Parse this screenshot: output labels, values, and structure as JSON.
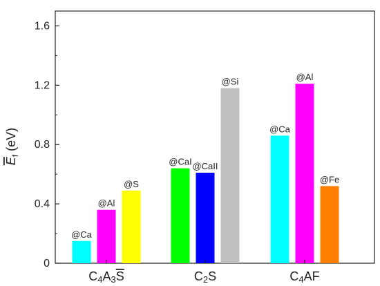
{
  "chart_data": {
    "type": "bar",
    "ylabel": "Ef (eV)",
    "ylabel_main": "E",
    "ylabel_sub": "f",
    "ylabel_unit": " (eV)",
    "ylim": [
      0,
      1.7
    ],
    "yticks": [
      "0",
      "0.4",
      "0.8",
      "1.2",
      "1.6"
    ],
    "ytick_values": [
      0,
      0.4,
      0.8,
      1.2,
      1.6
    ],
    "grid": false,
    "categories": [
      {
        "name": "C4A3S̄",
        "parts": [
          [
            "C",
            ""
          ],
          [
            "4",
            "sub"
          ],
          [
            "A",
            ""
          ],
          [
            "3",
            "sub"
          ],
          [
            "S",
            "overline"
          ]
        ]
      },
      {
        "name": "C2S",
        "parts": [
          [
            "C",
            ""
          ],
          [
            "2",
            "sub"
          ],
          [
            "S",
            ""
          ]
        ]
      },
      {
        "name": "C4AF",
        "parts": [
          [
            "C",
            ""
          ],
          [
            "4",
            "sub"
          ],
          [
            "AF",
            ""
          ]
        ]
      }
    ],
    "groups": [
      {
        "category": "C4A3S̄",
        "bars": [
          {
            "label": "@Ca",
            "value": 0.15,
            "color": "#00FFFF"
          },
          {
            "label": "@Al",
            "value": 0.36,
            "color": "#FF00FF"
          },
          {
            "label": "@S",
            "value": 0.49,
            "color": "#FFFF00"
          }
        ]
      },
      {
        "category": "C2S",
        "bars": [
          {
            "label": "@CaI",
            "value": 0.64,
            "color": "#00FF00"
          },
          {
            "label": "@CaII",
            "value": 0.61,
            "color": "#0000FF"
          },
          {
            "label": "@Si",
            "value": 1.18,
            "color": "#C0C0C0"
          }
        ]
      },
      {
        "category": "C4AF",
        "bars": [
          {
            "label": "@Ca",
            "value": 0.86,
            "color": "#00FFFF"
          },
          {
            "label": "@Al",
            "value": 1.21,
            "color": "#FF00FF"
          },
          {
            "label": "@Fe",
            "value": 0.52,
            "color": "#FF8000"
          }
        ]
      }
    ]
  }
}
